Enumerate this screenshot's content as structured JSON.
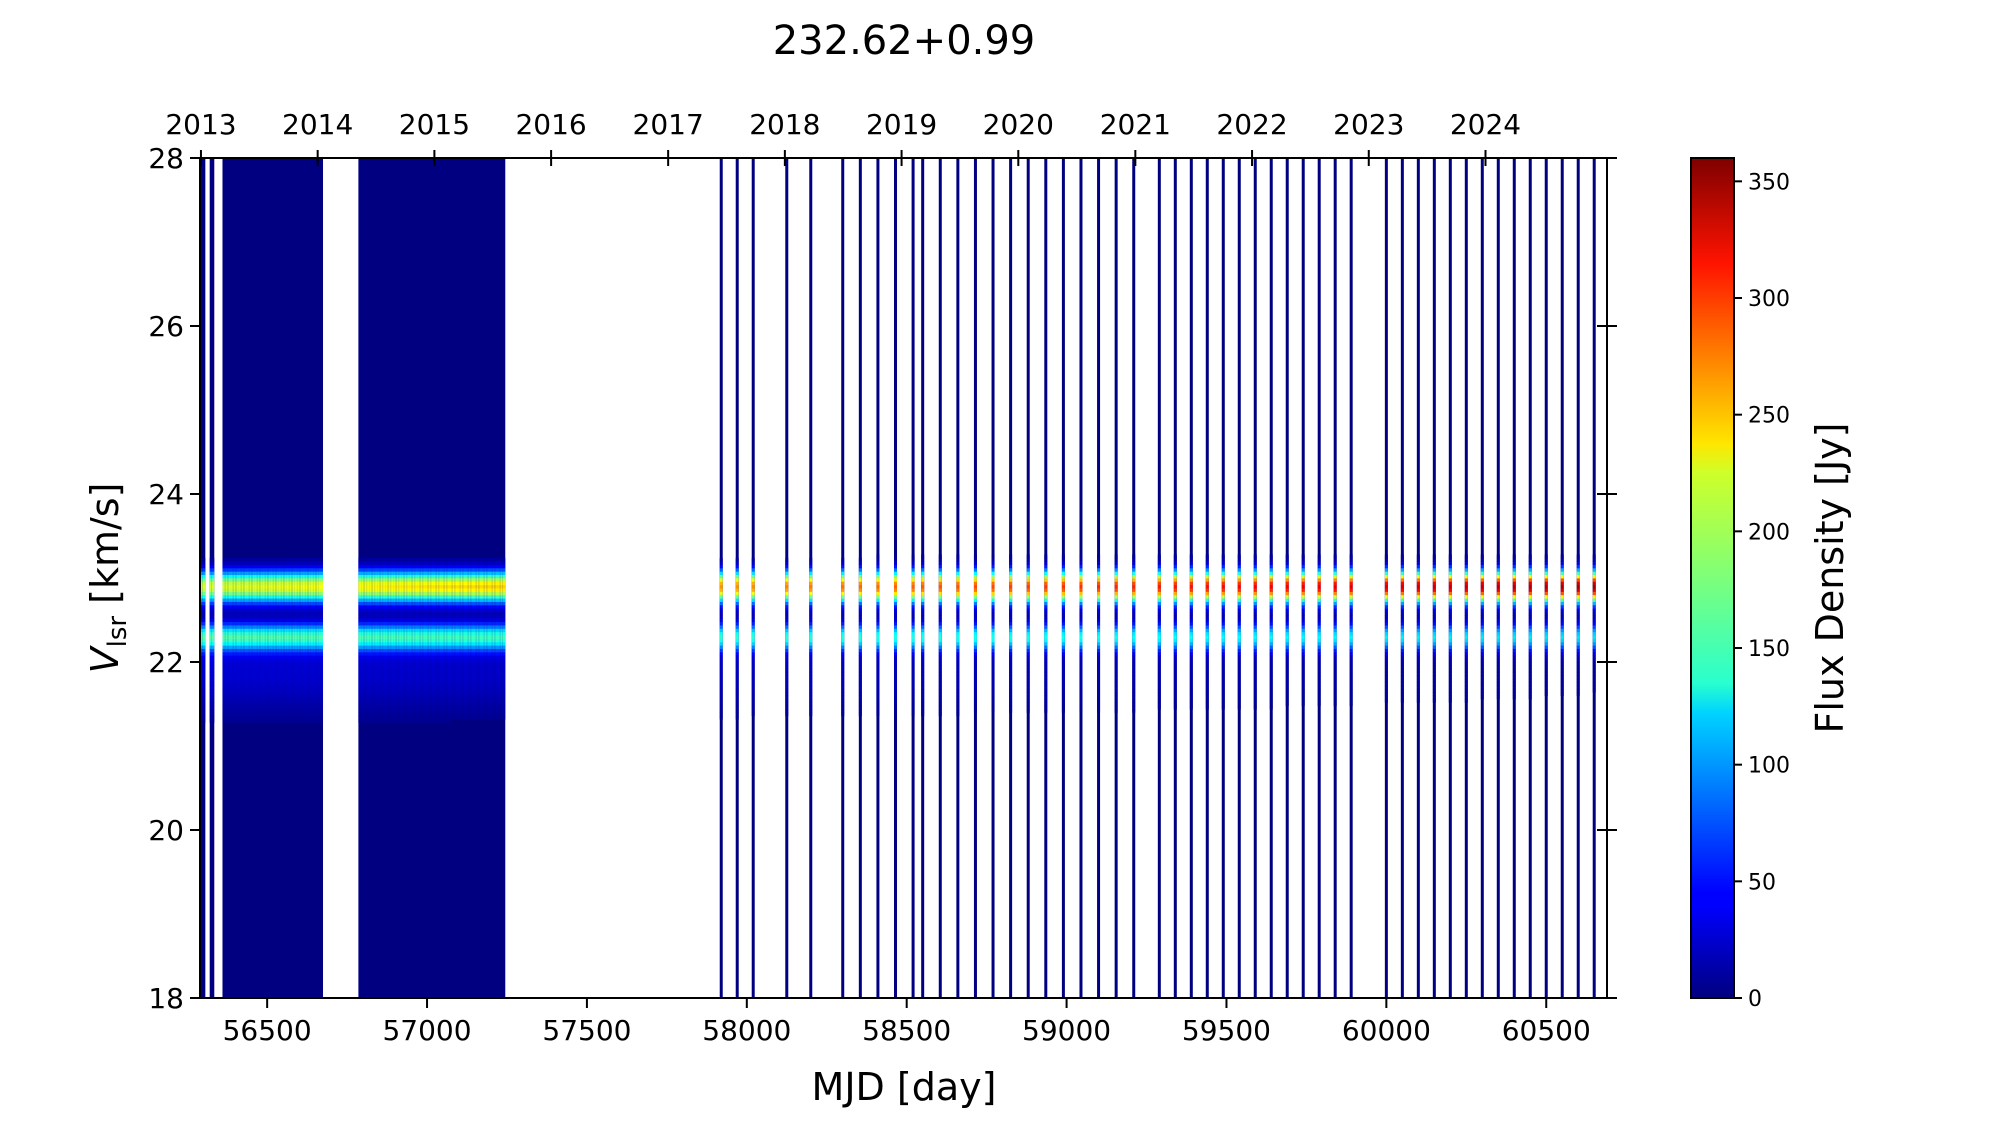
{
  "chart_data": {
    "type": "heatmap",
    "title": "232.62+0.99",
    "xlabel": "MJD [day]",
    "ylabel_main": "V",
    "ylabel_sub": "lsr",
    "ylabel_rest": " [km/s]",
    "colorbar_label": "Flux Density [Jy]",
    "colormap": "jet",
    "xlim": [
      56290,
      60690
    ],
    "ylim": [
      18,
      28
    ],
    "clim": [
      0,
      360
    ],
    "x_ticks": [
      56500,
      57000,
      57500,
      58000,
      58500,
      59000,
      59500,
      60000,
      60500
    ],
    "x_tick_labels": [
      "56500",
      "57000",
      "57500",
      "58000",
      "58500",
      "59000",
      "59500",
      "60000",
      "60500"
    ],
    "y_ticks": [
      18,
      20,
      22,
      24,
      26,
      28
    ],
    "y_tick_labels": [
      "18",
      "20",
      "22",
      "24",
      "26",
      "28"
    ],
    "top_ticks": [
      56293,
      56658,
      57023,
      57388,
      57754,
      58119,
      58484,
      58849,
      59215,
      59580,
      59945,
      60310
    ],
    "top_tick_labels": [
      "2013",
      "2014",
      "2015",
      "2016",
      "2017",
      "2018",
      "2019",
      "2020",
      "2021",
      "2022",
      "2023",
      "2024"
    ],
    "colorbar_ticks": [
      0,
      50,
      100,
      150,
      200,
      250,
      300,
      350
    ],
    "colorbar_tick_labels": [
      "0",
      "50",
      "100",
      "150",
      "200",
      "250",
      "300",
      "350"
    ],
    "observation_segments": [
      {
        "start": 56295,
        "end": 56302,
        "step": 7
      },
      {
        "start": 56325,
        "end": 56330,
        "step": 5
      },
      {
        "start": 56365,
        "end": 56670,
        "step": 5
      },
      {
        "start": 56790,
        "end": 57240,
        "step": 5
      },
      {
        "start": 57920,
        "end": 57920,
        "step": 1
      },
      {
        "start": 57970,
        "end": 58020,
        "step": 50
      },
      {
        "start": 58125,
        "end": 58200,
        "step": 75
      },
      {
        "start": 58300,
        "end": 58520,
        "step": 55
      },
      {
        "start": 58550,
        "end": 59210,
        "step": 55
      },
      {
        "start": 59290,
        "end": 59910,
        "step": 50
      },
      {
        "start": 60000,
        "end": 60700,
        "step": 50
      }
    ],
    "emission_components": [
      {
        "velocity": 22.9,
        "width": 0.13,
        "peak_start": 210,
        "peak_end": 350
      },
      {
        "velocity": 22.3,
        "width": 0.11,
        "peak_start": 150,
        "peak_end": 120
      },
      {
        "velocity": 21.9,
        "width": 0.35,
        "peak_start": 30,
        "peak_end": 8
      }
    ],
    "legend": "colorbar right"
  }
}
